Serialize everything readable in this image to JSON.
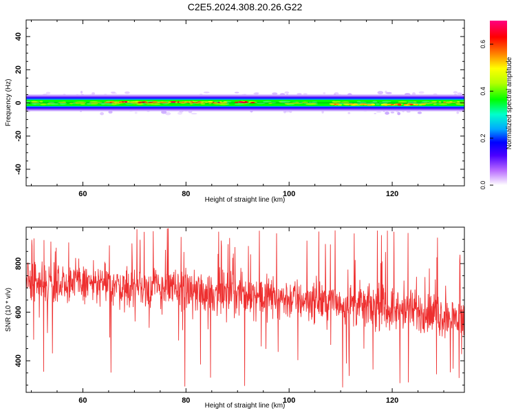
{
  "title": "C2E5.2024.308.20.26.G22",
  "chart_data": [
    {
      "type": "heatmap",
      "xlabel": "Height of straight line (km)",
      "ylabel": "Frequency (Hz)",
      "xlim": [
        49,
        134
      ],
      "ylim": [
        -50,
        50
      ],
      "xticks": [
        60,
        80,
        100,
        120
      ],
      "yticks": [
        40,
        20,
        0,
        -20,
        -40
      ],
      "grid": false,
      "colorbar": {
        "label": "Normalized spectral amplitude",
        "range": [
          0.0,
          0.7
        ],
        "ticks": [
          0.0,
          0.2,
          0.4,
          0.6
        ],
        "colormap": [
          "#ffffff",
          "#b86bff",
          "#4b00ff",
          "#0000ff",
          "#00a8ff",
          "#00ffcc",
          "#00ff00",
          "#b5ff00",
          "#ffff00",
          "#ff8000",
          "#ff0000",
          "#ff0080"
        ]
      },
      "band": {
        "center_freq_hz": 0,
        "core_halfwidth_hz": 2,
        "outer_halfwidth_hz": 5,
        "dominant_color": "#00ff00"
      },
      "peak_segments": [
        {
          "x": [
            64,
            93
          ],
          "freq_hz": 0.4,
          "amplitude": 0.68
        },
        {
          "x": [
            108,
            126
          ],
          "freq_hz": -1.0,
          "amplitude": 0.62
        },
        {
          "x": [
            128,
            134
          ],
          "freq_hz": 0.3,
          "amplitude": 0.55
        }
      ]
    },
    {
      "type": "line",
      "xlabel": "Height of straight line (km)",
      "ylabel": "SNR (10 * v/v)",
      "xlim": [
        49,
        134
      ],
      "ylim": [
        270,
        950
      ],
      "xticks": [
        60,
        80,
        100,
        120
      ],
      "yticks": [
        800,
        600,
        400
      ],
      "grid": false,
      "series": [
        {
          "color": "#ee2f2f",
          "x": [
            49,
            55,
            60,
            65,
            70,
            75,
            80,
            85,
            90,
            95,
            100,
            105,
            110,
            115,
            120,
            125,
            130,
            134
          ],
          "values": [
            720,
            725,
            722,
            712,
            705,
            700,
            688,
            682,
            676,
            668,
            655,
            648,
            638,
            625,
            612,
            600,
            585,
            570
          ],
          "noise_amplitude": 75,
          "spike_max": 950,
          "spike_min": 290
        }
      ]
    }
  ]
}
